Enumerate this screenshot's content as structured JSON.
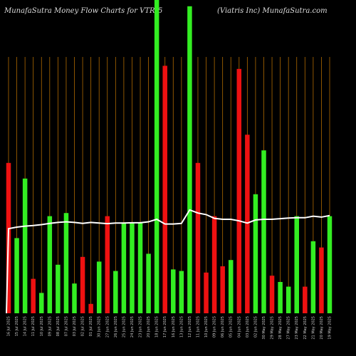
{
  "header": {
    "left": "MunafaSutra  Money Flow  Charts for VTR",
    "middle": "5",
    "right": "(Viatris Inc) MunafaSutra.com"
  },
  "chart_data": {
    "type": "bar",
    "x_labels": [
      "16 Jul 2025",
      "15 Jul 2025",
      "14 Jul 2025",
      "11 Jul 2025",
      "10 Jul 2025",
      "09 Jul 2025",
      "08 Jul 2025",
      "07 Jul 2025",
      "03 Jul 2025",
      "02 Jul 2025",
      "01 Jul 2025",
      "30 Jun 2025",
      "27 Jun 2025",
      "26 Jun 2025",
      "25 Jun 2025",
      "24 Jun 2025",
      "23 Jun 2025",
      "20 Jun 2025",
      "18 Jun 2025",
      "17 Jun 2025",
      "16 Jun 2025",
      "13 Jun 2025",
      "12 Jun 2025",
      "11 Jun 2025",
      "10 Jun 2025",
      "09 Jun 2025",
      "06 Jun 2025",
      "05 Jun 2025",
      "04 Jun 2025",
      "03 Jun 2025",
      "02 Jun 2025",
      "30 May 2025",
      "29 May 2025",
      "28 May 2025",
      "27 May 2025",
      "23 May 2025",
      "22 May 2025",
      "21 May 2025",
      "20 May 2025",
      "19 May 2025"
    ],
    "bars": [
      {
        "value": 0.48,
        "color": "red"
      },
      {
        "value": 0.24,
        "color": "green"
      },
      {
        "value": 0.43,
        "color": "green"
      },
      {
        "value": 0.11,
        "color": "red"
      },
      {
        "value": 0.065,
        "color": "green"
      },
      {
        "value": 0.31,
        "color": "green"
      },
      {
        "value": 0.155,
        "color": "green"
      },
      {
        "value": 0.32,
        "color": "green"
      },
      {
        "value": 0.095,
        "color": "green"
      },
      {
        "value": 0.18,
        "color": "red"
      },
      {
        "value": 0.03,
        "color": "red"
      },
      {
        "value": 0.165,
        "color": "green"
      },
      {
        "value": 0.31,
        "color": "red"
      },
      {
        "value": 0.135,
        "color": "green"
      },
      {
        "value": 0.29,
        "color": "green"
      },
      {
        "value": 0.29,
        "color": "green"
      },
      {
        "value": 0.29,
        "color": "green"
      },
      {
        "value": 0.19,
        "color": "green"
      },
      {
        "value": 1.0,
        "color": "green"
      },
      {
        "value": 0.79,
        "color": "red"
      },
      {
        "value": 0.14,
        "color": "green"
      },
      {
        "value": 0.135,
        "color": "green"
      },
      {
        "value": 0.98,
        "color": "green"
      },
      {
        "value": 0.48,
        "color": "red"
      },
      {
        "value": 0.13,
        "color": "red"
      },
      {
        "value": 0.31,
        "color": "red"
      },
      {
        "value": 0.15,
        "color": "red"
      },
      {
        "value": 0.17,
        "color": "green"
      },
      {
        "value": 0.78,
        "color": "red"
      },
      {
        "value": 0.57,
        "color": "red"
      },
      {
        "value": 0.38,
        "color": "green"
      },
      {
        "value": 0.52,
        "color": "green"
      },
      {
        "value": 0.12,
        "color": "red"
      },
      {
        "value": 0.1,
        "color": "green"
      },
      {
        "value": 0.085,
        "color": "green"
      },
      {
        "value": 0.31,
        "color": "green"
      },
      {
        "value": 0.085,
        "color": "red"
      },
      {
        "value": 0.23,
        "color": "green"
      },
      {
        "value": 0.21,
        "color": "red"
      },
      {
        "value": 0.31,
        "color": "green"
      }
    ],
    "line": [
      0.27,
      0.275,
      0.278,
      0.28,
      0.283,
      0.287,
      0.29,
      0.292,
      0.29,
      0.287,
      0.29,
      0.288,
      0.286,
      0.288,
      0.288,
      0.289,
      0.289,
      0.292,
      0.3,
      0.285,
      0.285,
      0.287,
      0.33,
      0.32,
      0.315,
      0.303,
      0.3,
      0.3,
      0.295,
      0.288,
      0.298,
      0.3,
      0.3,
      0.302,
      0.304,
      0.305,
      0.305,
      0.31,
      0.307,
      0.312
    ],
    "grid": true,
    "colors": {
      "green": "#33ee22",
      "red": "#ee1111",
      "line": "#ffffff",
      "grid": "#b06a00"
    }
  }
}
